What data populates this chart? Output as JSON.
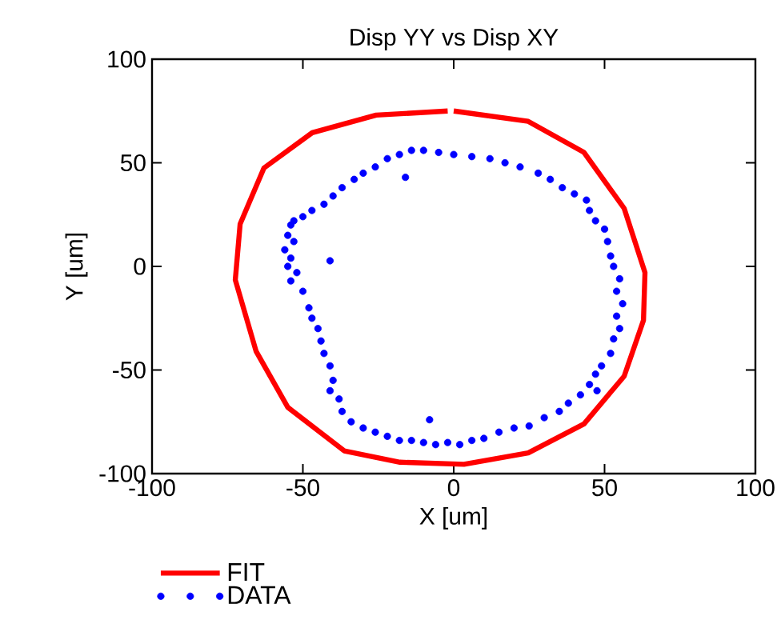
{
  "chart_data": {
    "type": "scatter",
    "title": "Disp YY vs Disp XY",
    "xlabel": "X  [um]",
    "ylabel": "Y [um]",
    "xlim": [
      -100,
      100
    ],
    "ylim": [
      -100,
      100
    ],
    "xticks": [
      -100,
      -50,
      0,
      50,
      100
    ],
    "yticks": [
      -100,
      -50,
      0,
      50,
      100
    ],
    "grid": false,
    "legend": "bottom",
    "series": [
      {
        "name": "FIT",
        "type": "line",
        "color": "#ff0000",
        "marker": "none",
        "line_style": "solid",
        "x": [
          0,
          24.7,
          43.2,
          56.5,
          63.4,
          62.9,
          56.5,
          43.2,
          24.7,
          3.4,
          -17.8,
          -36.3,
          -55,
          -65.5,
          -72.4,
          -70.8,
          -62.9,
          -46.9,
          -25.7,
          -2
        ],
        "values": [
          75,
          70,
          55,
          28,
          -3,
          -26,
          -53,
          -76,
          -90,
          -95.5,
          -94.5,
          -89,
          -68,
          -41,
          -6.5,
          20.5,
          47.5,
          64.5,
          73,
          75
        ]
      },
      {
        "name": "DATA",
        "color": "#0000ff",
        "marker": "circle",
        "x": [
          -54,
          -55,
          -53,
          -56,
          -54,
          -55,
          -52,
          -54,
          -50,
          -48,
          -47,
          -45,
          -44,
          -43,
          -41,
          -40,
          -41,
          -38,
          -37,
          -34,
          -30,
          -26,
          -22,
          -18,
          -14,
          -10,
          -6,
          -2,
          2,
          6,
          10,
          15,
          20,
          25,
          30,
          35,
          38,
          42,
          45,
          47,
          49,
          52,
          53,
          55,
          54,
          56,
          54,
          55,
          53,
          52,
          51,
          50,
          47,
          45,
          44,
          40,
          36,
          32,
          28,
          22,
          17,
          12,
          6,
          0,
          -5,
          -10,
          -14,
          -18,
          -22,
          -26,
          -30,
          -33,
          -37,
          -40,
          -43,
          -47,
          -50,
          -53,
          -41,
          -16,
          -8,
          47.5
        ],
        "values": [
          20,
          15,
          12,
          8,
          4,
          0,
          -3,
          -7,
          -12,
          -20,
          -25,
          -30,
          -36,
          -42,
          -48,
          -55,
          -60,
          -64,
          -70,
          -75,
          -78,
          -80,
          -82,
          -84,
          -84,
          -85,
          -86,
          -85,
          -86,
          -84,
          -83,
          -80,
          -78,
          -77,
          -73,
          -70,
          -66,
          -62,
          -57,
          -52,
          -48,
          -42,
          -35,
          -30,
          -24,
          -18,
          -12,
          -6,
          0,
          5,
          12,
          18,
          22,
          27,
          32,
          35,
          38,
          42,
          45,
          48,
          50,
          52,
          53,
          54,
          55,
          56,
          56,
          54,
          52,
          48,
          45,
          42,
          38,
          34,
          30,
          27,
          24,
          22,
          2.7,
          43,
          -74,
          -60
        ]
      }
    ]
  }
}
